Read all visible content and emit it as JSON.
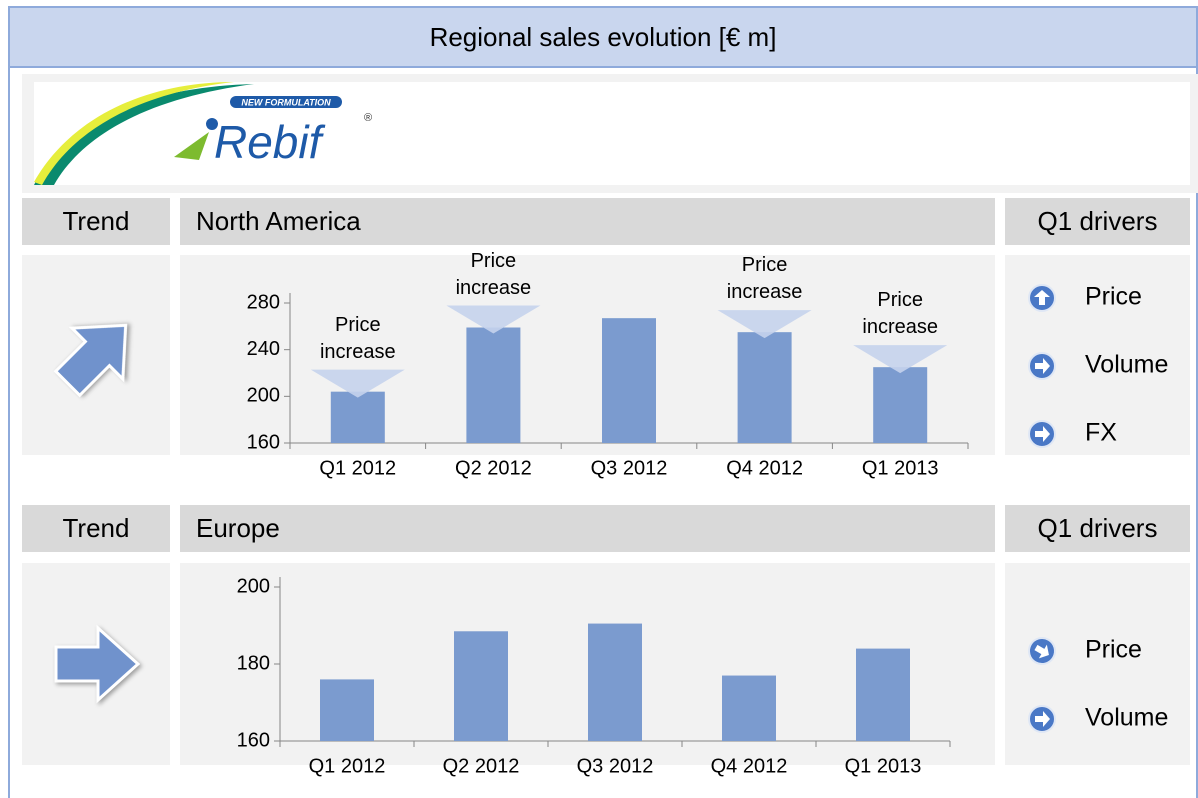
{
  "title": "Regional sales evolution [€ m]",
  "logo": {
    "tagline": "NEW FORMULATION",
    "name": "Rebif",
    "mark": "®"
  },
  "regions": [
    {
      "trend_header": "Trend",
      "name": "North America",
      "drivers_header": "Q1 drivers",
      "trend": "up-right",
      "drivers": [
        {
          "name": "Price",
          "direction": "up"
        },
        {
          "name": "Volume",
          "direction": "right"
        },
        {
          "name": "FX",
          "direction": "right"
        }
      ]
    },
    {
      "trend_header": "Trend",
      "name": "Europe",
      "drivers_header": "Q1 drivers",
      "trend": "right",
      "drivers": [
        {
          "name": "Price",
          "direction": "down-right"
        },
        {
          "name": "Volume",
          "direction": "right"
        }
      ]
    }
  ],
  "chart_data": [
    {
      "type": "bar",
      "categories": [
        "Q1 2012",
        "Q2 2012",
        "Q3 2012",
        "Q4 2012",
        "Q1 2013"
      ],
      "values": [
        204,
        259,
        267,
        255,
        225
      ],
      "color": "#7b9bcf",
      "annotations": [
        "Price increase",
        "Price increase",
        null,
        "Price increase",
        "Price increase"
      ],
      "ylim": [
        160,
        280
      ],
      "yticks": [
        160,
        200,
        240,
        280
      ]
    },
    {
      "type": "bar",
      "categories": [
        "Q1 2012",
        "Q2 2012",
        "Q3 2012",
        "Q4 2012",
        "Q1 2013"
      ],
      "values": [
        176,
        188.5,
        190.5,
        177,
        184
      ],
      "color": "#7b9bcf",
      "ylim": [
        160,
        200
      ],
      "yticks": [
        160,
        180,
        200
      ]
    }
  ]
}
